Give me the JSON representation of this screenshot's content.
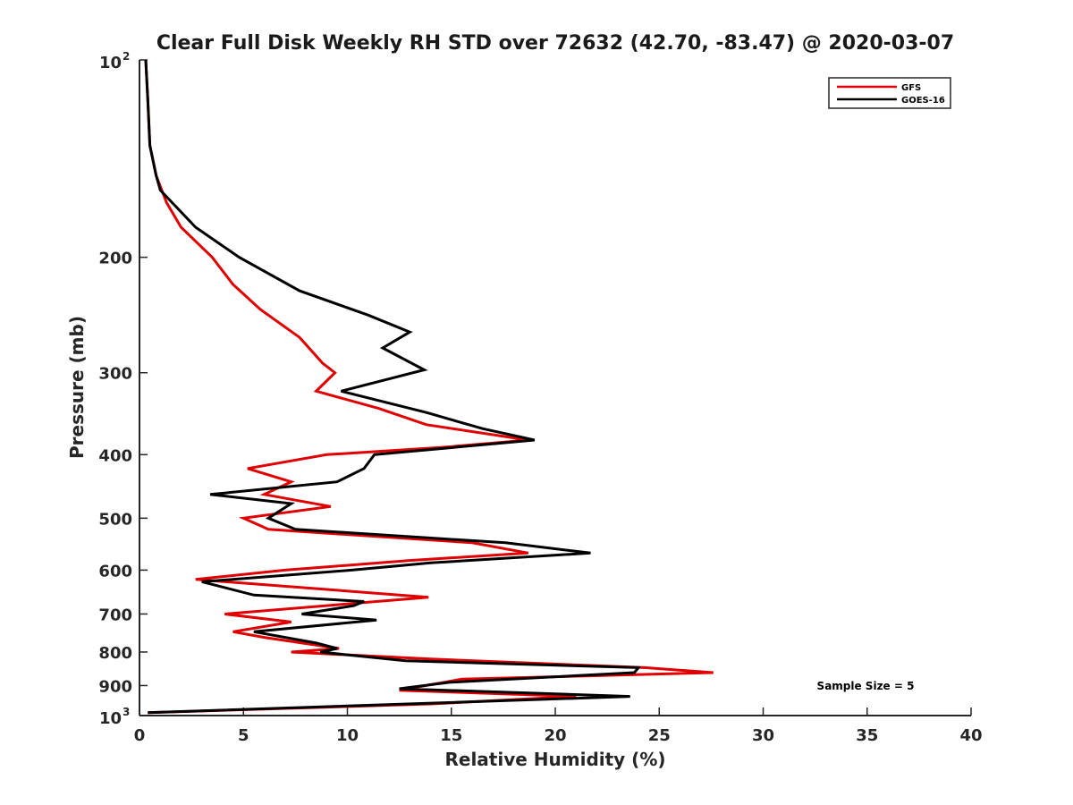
{
  "chart_data": {
    "type": "line",
    "title": "Clear Full Disk Weekly RH STD over 72632 (42.70, -83.47) @ 2020-03-07",
    "xlabel": "Relative Humidity (%)",
    "ylabel": "Pressure (mb)",
    "xlim": [
      0,
      40
    ],
    "ylim": [
      100,
      1000
    ],
    "y_scale": "log",
    "y_reversed": true,
    "x_ticks": [
      "0",
      "5",
      "10",
      "15",
      "20",
      "25",
      "30",
      "35",
      "40"
    ],
    "y_ticks": [
      {
        "value": 100,
        "base": "10",
        "exp": "2"
      },
      {
        "value": 200,
        "label": "200"
      },
      {
        "value": 300,
        "label": "300"
      },
      {
        "value": 400,
        "label": "400"
      },
      {
        "value": 500,
        "label": "500"
      },
      {
        "value": 600,
        "label": "600"
      },
      {
        "value": 700,
        "label": "700"
      },
      {
        "value": 800,
        "label": "800"
      },
      {
        "value": 900,
        "label": "900"
      },
      {
        "value": 1000,
        "base": "10",
        "exp": "3"
      }
    ],
    "grid": false,
    "legend_position": "top-right",
    "annotation": "Sample Size = 5",
    "series": [
      {
        "name": "GFS",
        "color": "#e00000",
        "points": [
          [
            0.3,
            100
          ],
          [
            0.4,
            115
          ],
          [
            0.5,
            135
          ],
          [
            0.8,
            150
          ],
          [
            1.3,
            165
          ],
          [
            2.0,
            180
          ],
          [
            3.5,
            200
          ],
          [
            4.5,
            220
          ],
          [
            5.8,
            240
          ],
          [
            7.7,
            265
          ],
          [
            8.8,
            290
          ],
          [
            9.4,
            300
          ],
          [
            8.5,
            320
          ],
          [
            11.5,
            340
          ],
          [
            13.8,
            360
          ],
          [
            18.7,
            380
          ],
          [
            14.5,
            390
          ],
          [
            9.0,
            400
          ],
          [
            5.2,
            420
          ],
          [
            7.3,
            440
          ],
          [
            6.0,
            460
          ],
          [
            9.2,
            480
          ],
          [
            5.0,
            500
          ],
          [
            6.2,
            520
          ],
          [
            16.0,
            545
          ],
          [
            18.7,
            565
          ],
          [
            13.0,
            580
          ],
          [
            7.0,
            600
          ],
          [
            2.7,
            620
          ],
          [
            13.9,
            660
          ],
          [
            4.1,
            700
          ],
          [
            7.3,
            720
          ],
          [
            4.5,
            745
          ],
          [
            6.0,
            760
          ],
          [
            9.6,
            790
          ],
          [
            7.3,
            800
          ],
          [
            14.0,
            820
          ],
          [
            24.3,
            845
          ],
          [
            27.6,
            860
          ],
          [
            15.5,
            880
          ],
          [
            12.5,
            915
          ],
          [
            21.0,
            935
          ],
          [
            14.0,
            960
          ],
          [
            0.4,
            990
          ]
        ]
      },
      {
        "name": "GOES-16",
        "color": "#000000",
        "points": [
          [
            0.3,
            100
          ],
          [
            0.4,
            115
          ],
          [
            0.5,
            135
          ],
          [
            0.8,
            150
          ],
          [
            1.0,
            158
          ],
          [
            2.7,
            180
          ],
          [
            4.8,
            200
          ],
          [
            7.7,
            225
          ],
          [
            11.0,
            245
          ],
          [
            13.0,
            260
          ],
          [
            11.7,
            275
          ],
          [
            13.7,
            297
          ],
          [
            9.7,
            320
          ],
          [
            13.8,
            345
          ],
          [
            16.5,
            365
          ],
          [
            19.0,
            380
          ],
          [
            11.3,
            400
          ],
          [
            10.8,
            420
          ],
          [
            9.5,
            440
          ],
          [
            3.4,
            460
          ],
          [
            7.3,
            475
          ],
          [
            6.2,
            500
          ],
          [
            7.5,
            520
          ],
          [
            17.6,
            545
          ],
          [
            21.7,
            565
          ],
          [
            14.0,
            585
          ],
          [
            10.2,
            600
          ],
          [
            3.0,
            625
          ],
          [
            5.5,
            655
          ],
          [
            10.8,
            670
          ],
          [
            10.3,
            680
          ],
          [
            7.8,
            700
          ],
          [
            11.4,
            715
          ],
          [
            5.5,
            745
          ],
          [
            8.5,
            775
          ],
          [
            9.5,
            790
          ],
          [
            8.7,
            800
          ],
          [
            12.8,
            825
          ],
          [
            24.0,
            845
          ],
          [
            23.8,
            860
          ],
          [
            14.9,
            890
          ],
          [
            12.5,
            910
          ],
          [
            23.6,
            935
          ],
          [
            0.4,
            990
          ]
        ]
      }
    ]
  }
}
